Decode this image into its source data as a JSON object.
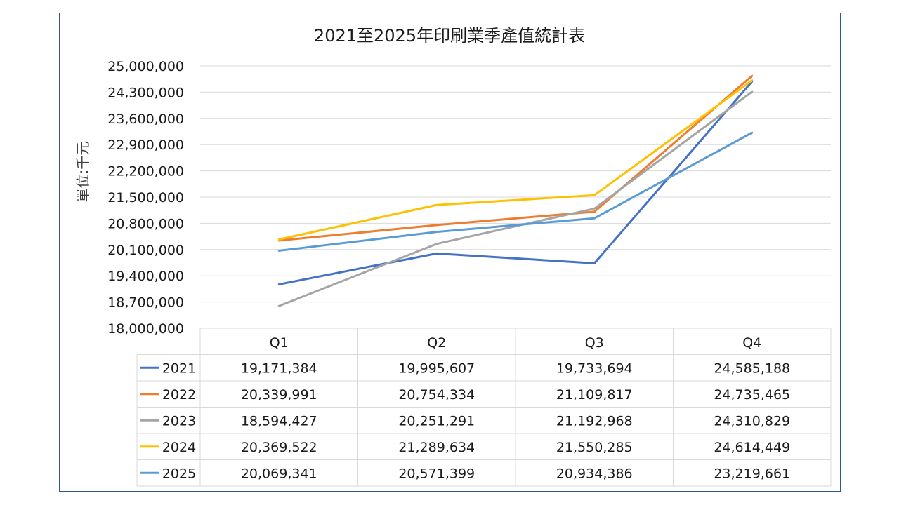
{
  "chart_data": {
    "type": "line",
    "title": "2021至2025年印刷業季產值統計表",
    "ylabel": "單位:千元",
    "xlabel": "",
    "categories": [
      "Q1",
      "Q2",
      "Q3",
      "Q4"
    ],
    "ylim": [
      18000000,
      25000000
    ],
    "yticks": [
      "25,000,000",
      "24,300,000",
      "23,600,000",
      "22,900,000",
      "22,200,000",
      "21,500,000",
      "20,800,000",
      "20,100,000",
      "19,400,000",
      "18,700,000",
      "18,000,000"
    ],
    "grid": true,
    "legend": "data-table",
    "series": [
      {
        "name": "2021",
        "color": "#4472c4",
        "values": [
          19171384,
          19995607,
          19733694,
          24585188
        ],
        "labels": [
          "19,171,384",
          "19,995,607",
          "19,733,694",
          "24,585,188"
        ]
      },
      {
        "name": "2022",
        "color": "#ed7d31",
        "values": [
          20339991,
          20754334,
          21109817,
          24735465
        ],
        "labels": [
          "20,339,991",
          "20,754,334",
          "21,109,817",
          "24,735,465"
        ]
      },
      {
        "name": "2023",
        "color": "#a5a5a5",
        "values": [
          18594427,
          20251291,
          21192968,
          24310829
        ],
        "labels": [
          "18,594,427",
          "20,251,291",
          "21,192,968",
          "24,310,829"
        ]
      },
      {
        "name": "2024",
        "color": "#ffc000",
        "values": [
          20369522,
          21289634,
          21550285,
          24614449
        ],
        "labels": [
          "20,369,522",
          "21,289,634",
          "21,550,285",
          "24,614,449"
        ]
      },
      {
        "name": "2025",
        "color": "#5b9bd5",
        "values": [
          20069341,
          20571399,
          20934386,
          23219661
        ],
        "labels": [
          "20,069,341",
          "20,571,399",
          "20,934,386",
          "23,219,661"
        ]
      }
    ]
  }
}
